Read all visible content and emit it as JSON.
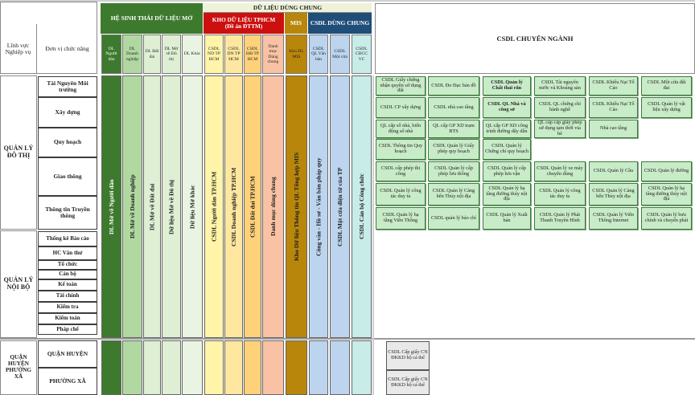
{
  "top_header": "DỮ LIỆU DÙNG CHUNG",
  "col_linh_vuc": "Lĩnh vực Nghiệp vụ",
  "col_don_vi": "Đơn vị chức năng",
  "groups": {
    "hst": "HỆ SINH THÁI DỮ LIỆU MỞ",
    "kho_line1": "KHO DỮ LIỆU TPHCM",
    "kho_line2": "(Đề án ĐTTM)",
    "mis": "MIS",
    "csdl_dc": "CSDL DÙNG CHUNG",
    "chuyen_nganh": "CSDL CHUYÊN NGÀNH"
  },
  "subheaders": [
    "DL Người dân",
    "DL Doanh nghiệp",
    "DL Đất đai",
    "DL Mở về Đô thị",
    "DL Khác",
    "CSDL ND TP HCM",
    "CSDL DN TP HCM",
    "CSDL ĐĐ TP HCM",
    "Danh mục Dùng chung",
    "Kho DL MIS",
    "CSDL QL Văn bản",
    "CSDL Một cửa",
    "CSDL CBCC VC"
  ],
  "column_texts": [
    "DL Mở về Người dân",
    "DL Mở về Doanh nghiệp",
    "DL Mở về Đất đai",
    "Dữ liệu Mở về Đô thị",
    "Dữ liệu Mở khác",
    "CSDL Người dân TP.HCM",
    "CSDL Doanh nghiệp TP.HCM",
    "CSDL Đất đai TP.HCM",
    "Danh mục dùng chung",
    "Kho Dữ liệu Thông tin QL Tổng hợp MIS",
    "Công văn - Hồ sơ - Văn bản pháp quy",
    "CSDL Một cửa điện tử của TP",
    "CSDL Cán bộ Công chức"
  ],
  "sectors": {
    "do_thi": "QUẢN LÝ ĐÔ THỊ",
    "noi_bo": "QUẢN LÝ NỘI BỘ",
    "qh_px": "QUẬN HUYỆN PHƯỜNG XÃ"
  },
  "units_do_thi": [
    "Tài Nguyên Môi trường",
    "Xây dựng",
    "Quy hoạch",
    "Giao thông",
    "Thông tin Truyền thông"
  ],
  "units_noi_bo": [
    "Thống kê Báo cáo",
    "HC Văn thư",
    "Tổ chức",
    "Cán bộ",
    "Kế toán",
    "Tài chính",
    "Kiểm tra",
    "Kiểm toán",
    "Pháp chế"
  ],
  "units_qh_px": [
    "QUẬN HUYỆN",
    "PHƯỜNG XÃ"
  ],
  "specialized": [
    [
      "CSDL Giấy chứng nhận quyền sử dụng đất",
      "CSDL CP xây dựng",
      "QL cấp số nhà, biển động số nhà",
      "CSDL Thông tin Quy hoạch",
      "CSDL cấp phép thi công",
      "CSDL Quản lý công tác duy tu",
      "CSDL Quản lý hạ tầng Viễn Thông"
    ],
    [
      "CSDL Đo Đạc bản đồ",
      "CSDL nhà cao tầng",
      "QL cấp GP XD trạm BTS",
      "CSDL Quản lý Giấy phép quy hoạch",
      "CSDL Quản lý cấp phép lưu thông",
      "CSDL Quản lý Cảng bến Thủy nội địa",
      "CSDL quản lý báo chí"
    ],
    [
      "CSDL Quản lý Chất thải rắn",
      "CSDL QL Nhà và công sở",
      "QL cấp GP XD công trình đường dây dẫn",
      "CSDL Quản lý Chứng chỉ quy hoạch",
      "CSDL Quản lý cấp phép lưu vận",
      "CSDL Quản lý hạ tầng đường thủy nội địa",
      "CSDL Quản lý Xuất bản"
    ],
    [
      "CSDL Tài nguyên nước và Khoáng sản",
      "CSDL QL chứng chỉ hành nghề",
      "QL cấp cấp giấy phép sử dụng tạm thời via hè",
      "",
      "CSDL Quản lý xe máy chuyên dùng",
      "CSDL Quản lý công tác duy tu",
      "CSDL Quản lý Phát Thanh Truyền Hình"
    ],
    [
      "CSDL Khiếu Nại Tố Cáo",
      "CSDL Khiếu Nại Tố Cáo",
      "Nhà cao tầng",
      "",
      "CSDL Quản lý Cầu",
      "CSDL Quản lý Cảng bến Thủy nội địa",
      "CSDL Quản lý Viễn Thông Internet"
    ],
    [
      "CSDL Một cửa đất đai",
      "CSDL Quản lý vật liệu xây dựng",
      "",
      "",
      "CSDL Quản lý đường",
      "CSDL Quản lý hạ tầng đường thủy nội địa",
      "CSDL Quản lý bưu chính và chuyển phát"
    ]
  ],
  "district_cards": [
    "CSDL Cấp giấy CN ĐKKD hộ cá thể",
    "CSDL Cấp giấy CN ĐKKD hộ cá thể"
  ],
  "colors": {
    "green_dark": "#3d7a2e",
    "green_mid": "#b0d8a0",
    "green_light": "#dfefd4",
    "green_pale": "#e9f5e2",
    "kho_red": "#cc1010",
    "kho_yellow": "#fff4a8",
    "kho_orange": "#ffd27a",
    "kho_salmon": "#f9c2a4",
    "mis_gold": "#b8860b",
    "blue_dark": "#1f4e79",
    "blue_light": "#bcd4ee",
    "teal_light": "#c8ece8",
    "cell_green": "#c8ebc8"
  }
}
